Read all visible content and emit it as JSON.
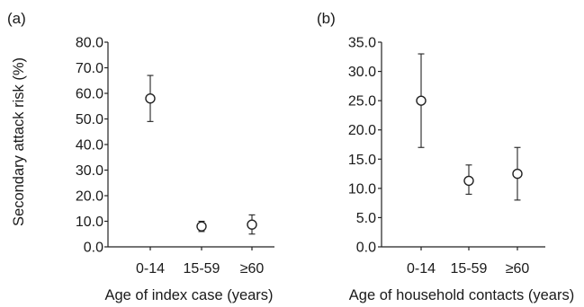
{
  "chart_data": [
    {
      "type": "scatter",
      "panel_label": "(a)",
      "title": "",
      "xlabel": "Age of index case (years)",
      "ylabel": "Secondary attack risk (%)",
      "ylim": [
        0,
        80
      ],
      "yticks": [
        "0.0",
        "10.0",
        "20.0",
        "30.0",
        "40.0",
        "50.0",
        "60.0",
        "70.0",
        "80.0"
      ],
      "categories": [
        "0-14",
        "15-59",
        "≥60"
      ],
      "values": [
        58.0,
        8.0,
        8.7
      ],
      "error_low": [
        49.0,
        6.0,
        5.0
      ],
      "error_high": [
        67.0,
        10.0,
        12.5
      ],
      "grid": false
    },
    {
      "type": "scatter",
      "panel_label": "(b)",
      "title": "",
      "xlabel": "Age of household contacts (years)",
      "ylabel": "",
      "ylim": [
        0,
        35
      ],
      "yticks": [
        "0.0",
        "5.0",
        "10.0",
        "15.0",
        "20.0",
        "25.0",
        "30.0",
        "35.0"
      ],
      "categories": [
        "0-14",
        "15-59",
        "≥60"
      ],
      "values": [
        25.0,
        11.3,
        12.5
      ],
      "error_low": [
        17.0,
        9.0,
        8.0
      ],
      "error_high": [
        33.0,
        14.0,
        17.0
      ],
      "grid": false
    }
  ]
}
